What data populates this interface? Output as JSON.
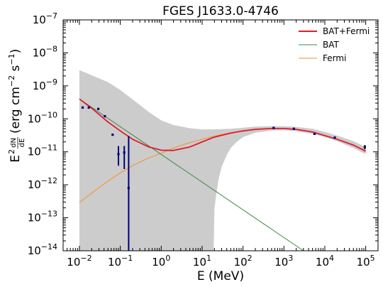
{
  "chart_data": {
    "type": "line",
    "title": "FGES J1633.0-4746",
    "xlabel": "E (MeV)",
    "ylabel": "E$^{2}$ dN/dE (erg cm$^{-2}$ s$^{-1}$)",
    "ylabel_parts": {
      "prefix": "E",
      "prefix_sup": "2",
      "frac_num": "dN",
      "frac_den": "dE",
      "unit_open": "(erg cm",
      "unit_sup1": "−2",
      "unit_mid": " s",
      "unit_sup2": "−1",
      "unit_close": ")"
    },
    "xscale": "log",
    "yscale": "log",
    "xlim": [
      0.004,
      200000
    ],
    "ylim": [
      1e-14,
      1e-07
    ],
    "x_ticks": [
      {
        "value": 0.01,
        "base": "10",
        "exp": "−2"
      },
      {
        "value": 0.1,
        "base": "10",
        "exp": "−1"
      },
      {
        "value": 1,
        "base": "10",
        "exp": "0"
      },
      {
        "value": 10,
        "base": "10",
        "exp": "1"
      },
      {
        "value": 100,
        "base": "10",
        "exp": "2"
      },
      {
        "value": 1000,
        "base": "10",
        "exp": "3"
      },
      {
        "value": 10000,
        "base": "10",
        "exp": "4"
      },
      {
        "value": 100000,
        "base": "10",
        "exp": "5"
      }
    ],
    "y_ticks": [
      {
        "value": 1e-14,
        "base": "10",
        "exp": "−14"
      },
      {
        "value": 1e-13,
        "base": "10",
        "exp": "−13"
      },
      {
        "value": 1e-12,
        "base": "10",
        "exp": "−12"
      },
      {
        "value": 1e-11,
        "base": "10",
        "exp": "−11"
      },
      {
        "value": 1e-10,
        "base": "10",
        "exp": "−10"
      },
      {
        "value": 1e-09,
        "base": "10",
        "exp": "−9"
      },
      {
        "value": 1e-08,
        "base": "10",
        "exp": "−8"
      },
      {
        "value": 1e-07,
        "base": "10",
        "exp": "−7"
      }
    ],
    "legend_placement": "top-right",
    "series": [
      {
        "name": "BAT+Fermi",
        "color": "#e31a2c",
        "x": [
          0.01,
          0.02,
          0.05,
          0.1,
          0.2,
          0.5,
          1,
          2,
          5,
          10,
          20,
          50,
          100,
          200,
          500,
          1000,
          2000,
          5000,
          10000,
          20000,
          50000,
          100000
        ],
        "y": [
          4e-10,
          2.1e-10,
          8e-11,
          4.3e-11,
          2.4e-11,
          1.4e-11,
          1.12e-11,
          1.1e-11,
          1.4e-11,
          2e-11,
          2.8e-11,
          3.7e-11,
          4.3e-11,
          4.8e-11,
          5.1e-11,
          5.1e-11,
          4.8e-11,
          4e-11,
          3.1e-11,
          2.4e-11,
          1.6e-11,
          1.05e-11
        ]
      },
      {
        "name": "BAT",
        "color": "#3a8a4a",
        "x": [
          0.01,
          3000
        ],
        "y": [
          4e-10,
          1e-14
        ]
      },
      {
        "name": "Fermi",
        "color": "#f0922a",
        "x": [
          0.01,
          0.02,
          0.05,
          0.1,
          0.2,
          0.5,
          1,
          2,
          5,
          10,
          20,
          50,
          100,
          200,
          500,
          1000,
          2000,
          5000,
          10000,
          20000,
          50000,
          100000
        ],
        "y": [
          2.9e-13,
          5.6e-13,
          1.3e-12,
          2.3e-12,
          3.8e-12,
          6.6e-12,
          9e-12,
          1.3e-11,
          1.9e-11,
          2.4e-11,
          3e-11,
          3.8e-11,
          4.3e-11,
          4.8e-11,
          5.1e-11,
          5.1e-11,
          4.8e-11,
          4e-11,
          3.1e-11,
          2.4e-11,
          1.6e-11,
          1e-11
        ]
      }
    ],
    "uncertainty_band": {
      "color": "#cccccc",
      "upper": {
        "x": [
          0.01,
          0.02,
          0.05,
          0.1,
          0.2,
          0.5,
          1,
          2,
          5,
          10,
          20,
          50,
          100,
          200,
          500,
          1000,
          2000,
          5000,
          10000,
          20000,
          50000,
          100000
        ],
        "y": [
          3e-09,
          2.1e-09,
          1.3e-09,
          7.5e-10,
          3.9e-10,
          1.6e-10,
          9e-11,
          6.5e-11,
          5.2e-11,
          4.8e-11,
          4.8e-11,
          5e-11,
          5.4e-11,
          5.8e-11,
          6e-11,
          6e-11,
          5.7e-11,
          5e-11,
          4e-11,
          3.1e-11,
          2.1e-11,
          1.4e-11
        ]
      },
      "lower": {
        "x": [
          0.01,
          0.1,
          1,
          10,
          19,
          19.5,
          20,
          25,
          30,
          40,
          50,
          70,
          100,
          200,
          500,
          1000,
          2000,
          5000,
          10000,
          20000,
          50000,
          100000
        ],
        "y": [
          1e-14,
          1e-14,
          1e-14,
          1e-14,
          1e-14,
          3e-14,
          2e-13,
          1.4e-12,
          3.5e-12,
          8e-12,
          1.3e-11,
          2e-11,
          2.8e-11,
          3.8e-11,
          4.4e-11,
          4.5e-11,
          4.2e-11,
          3.5e-11,
          2.8e-11,
          2.1e-11,
          1.3e-11,
          8.5e-12
        ]
      }
    },
    "data_points": {
      "color": "#00007a",
      "points": [
        {
          "x": 0.012,
          "y": 2.2e-10
        },
        {
          "x": 0.017,
          "y": 2.2e-10
        },
        {
          "x": 0.029,
          "y": 2e-10
        },
        {
          "x": 0.042,
          "y": 1.2e-10
        },
        {
          "x": 0.065,
          "y": 3.3e-11
        },
        {
          "x": 0.09,
          "y": 8.5e-12,
          "ylow": 3.8e-12,
          "yhigh": 1.5e-11
        },
        {
          "x": 0.125,
          "y": 9.5e-12,
          "ylow": 3e-12,
          "yhigh": 1.5e-11
        },
        {
          "x": 0.16,
          "y": 8e-13,
          "ylow": 1e-14,
          "yhigh": 3e-11
        },
        {
          "x": 560,
          "y": 5.3e-11
        },
        {
          "x": 1750,
          "y": 5e-11
        },
        {
          "x": 5600,
          "y": 3.5e-11
        },
        {
          "x": 17500,
          "y": 2.7e-11
        },
        {
          "x": 95000,
          "y": 1.4e-11,
          "ylow": 1.2e-11,
          "yhigh": 1.6e-11
        }
      ]
    }
  }
}
